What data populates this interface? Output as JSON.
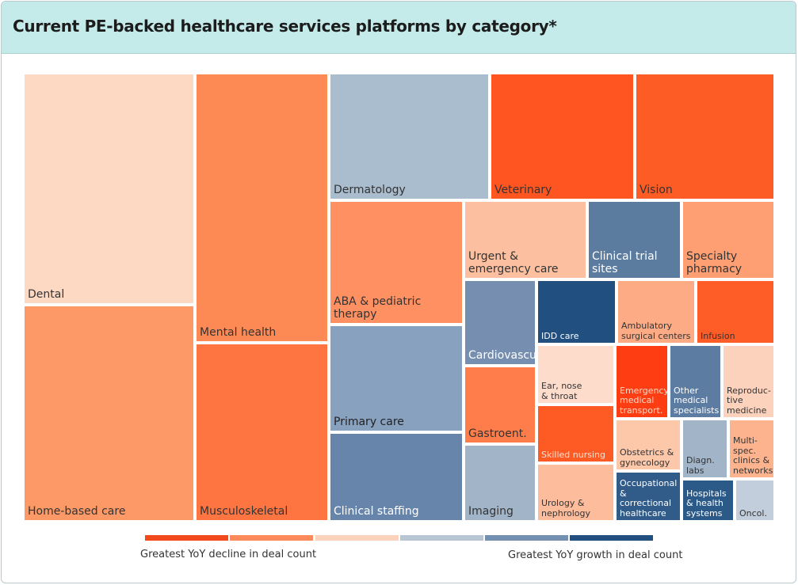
{
  "title": "Current PE-backed healthcare services platforms by category*",
  "colors": {
    "scale": [
      "#f24a1d",
      "#fc8a5b",
      "#fbd3bd",
      "#b8c6d4",
      "#7390b0",
      "#214f80"
    ]
  },
  "chart_data": {
    "type": "treemap",
    "title": "Current PE-backed healthcare services platforms by category*",
    "color_scale": {
      "low_label": "Greatest YoY decline in deal count",
      "high_label": "Greatest YoY growth in deal count"
    },
    "tiles": [
      {
        "label": "Dental",
        "color": "#fdd9c4",
        "text_color": "#333333"
      },
      {
        "label": "Home-based care",
        "color": "#fd9966",
        "text_color": "#333333"
      },
      {
        "label": "Mental health",
        "color": "#fd8a55",
        "text_color": "#333333"
      },
      {
        "label": "Musculoskeletal",
        "color": "#fe7542",
        "text_color": "#333333"
      },
      {
        "label": "Dermatology",
        "color": "#aabdcf",
        "text_color": "#333333"
      },
      {
        "label": "Veterinary",
        "color": "#fe5521",
        "text_color": "#333333"
      },
      {
        "label": "Vision",
        "color": "#fe5c25",
        "text_color": "#333333"
      },
      {
        "label": "ABA & pediatric therapy",
        "color": "#fe9062",
        "text_color": "#333333"
      },
      {
        "label": "Primary care",
        "color": "#88a1bf",
        "text_color": "#222222"
      },
      {
        "label": "Clinical staffing",
        "color": "#6785ab",
        "text_color": "#ffffff"
      },
      {
        "label": "Urgent &\nemergency care",
        "color": "#fcc0a0",
        "text_color": "#333333"
      },
      {
        "label": "Clinical trial sites",
        "color": "#5b7b9f",
        "text_color": "#ffffff"
      },
      {
        "label": "Specialty\npharmacy",
        "color": "#fd9e73",
        "text_color": "#333333"
      },
      {
        "label": "Cardiovascular",
        "color": "#768fb0",
        "text_color": "#ffffff"
      },
      {
        "label": "Gastroent.",
        "color": "#fe7d4b",
        "text_color": "#333333"
      },
      {
        "label": "Imaging",
        "color": "#a1b4c8",
        "text_color": "#333333"
      },
      {
        "label": "IDD care",
        "color": "#204f80",
        "text_color": "#ffffff"
      },
      {
        "label": "Ambulatory\nsurgical centers",
        "color": "#fdab84",
        "text_color": "#333333"
      },
      {
        "label": "Infusion",
        "color": "#fe5d27",
        "text_color": "#333333"
      },
      {
        "label": "Ear, nose\n& throat",
        "color": "#fddccc",
        "text_color": "#333333"
      },
      {
        "label": "Emergency\nmedical\ntransport.",
        "color": "#fe3d12",
        "text_color": "#fcd9c8"
      },
      {
        "label": "Other\nmedical\nspecialists",
        "color": "#5c7ca2",
        "text_color": "#ffffff"
      },
      {
        "label": "Reproduc-\ntive\nmedicine",
        "color": "#fdd2bc",
        "text_color": "#333333"
      },
      {
        "label": "Skilled nursing",
        "color": "#fe5a24",
        "text_color": "#fde0d2"
      },
      {
        "label": "Obstetrics &\ngynecology",
        "color": "#fdc7aa",
        "text_color": "#333333"
      },
      {
        "label": "Diagn.\nlabs",
        "color": "#a1b4c8",
        "text_color": "#333333"
      },
      {
        "label": "Multi-\nspec.\nclinics &\nnetworks",
        "color": "#fdb48e",
        "text_color": "#333333"
      },
      {
        "label": "Urology &\nnephrology",
        "color": "#fdbd9c",
        "text_color": "#333333"
      },
      {
        "label": "Occupational &\ncorrectional\nhealthcare",
        "color": "#315c8a",
        "text_color": "#ffffff"
      },
      {
        "label": "Hospitals\n& health\nsystems",
        "color": "#2b5a89",
        "text_color": "#ffffff"
      },
      {
        "label": "Oncol.",
        "color": "#c2cedb",
        "text_color": "#333333"
      }
    ]
  }
}
